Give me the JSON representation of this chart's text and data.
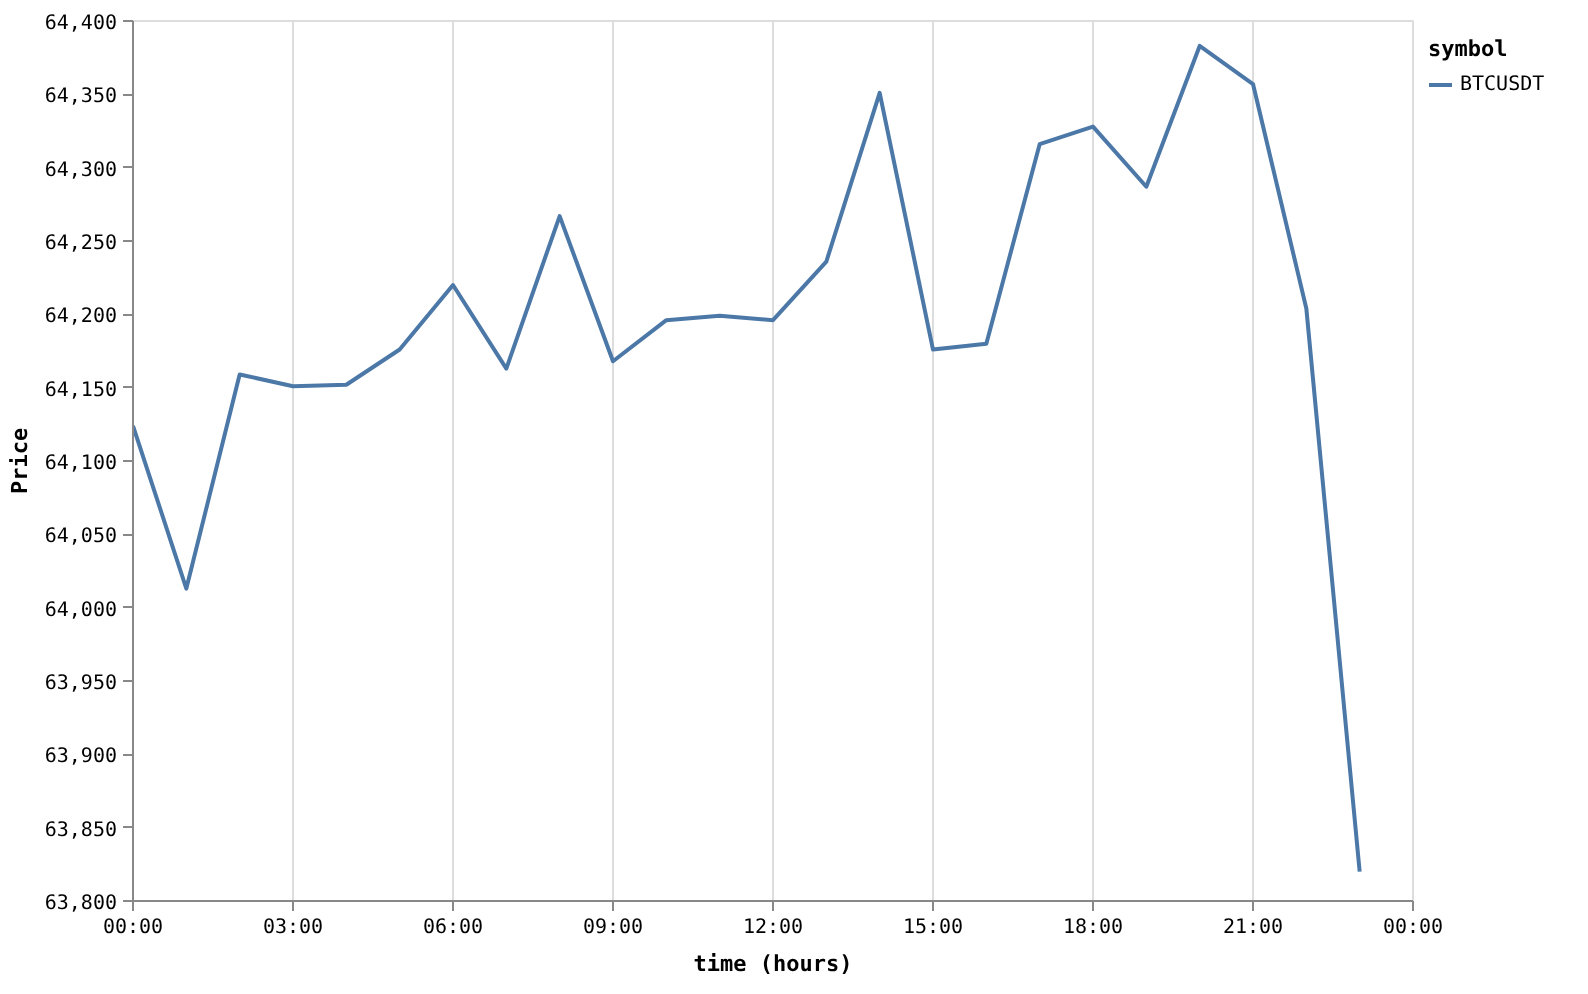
{
  "chart_data": {
    "type": "line",
    "xlabel": "time (hours)",
    "ylabel": "Price",
    "legend_title": "symbol",
    "x": [
      0,
      1,
      2,
      3,
      4,
      5,
      6,
      7,
      8,
      9,
      10,
      11,
      12,
      13,
      14,
      15,
      16,
      17,
      18,
      19,
      20,
      21,
      22,
      23
    ],
    "series": [
      {
        "name": "BTCUSDT",
        "color": "#4c78a8",
        "values": [
          64124,
          64013,
          64159,
          64151,
          64152,
          64176,
          64220,
          64163,
          64267,
          64168,
          64196,
          64199,
          64196,
          64236,
          64351,
          64176,
          64180,
          64316,
          64328,
          64287,
          64383,
          64357,
          64204,
          63820
        ]
      }
    ],
    "xlim": [
      0,
      24
    ],
    "xticks": [
      {
        "value": 0,
        "label": "00:00"
      },
      {
        "value": 3,
        "label": "03:00"
      },
      {
        "value": 6,
        "label": "06:00"
      },
      {
        "value": 9,
        "label": "09:00"
      },
      {
        "value": 12,
        "label": "12:00"
      },
      {
        "value": 15,
        "label": "15:00"
      },
      {
        "value": 18,
        "label": "18:00"
      },
      {
        "value": 21,
        "label": "21:00"
      },
      {
        "value": 24,
        "label": "00:00"
      }
    ],
    "ylim": [
      63800,
      64400
    ],
    "yticks": [
      {
        "value": 63800,
        "label": "63,800"
      },
      {
        "value": 63850,
        "label": "63,850"
      },
      {
        "value": 63900,
        "label": "63,900"
      },
      {
        "value": 63950,
        "label": "63,950"
      },
      {
        "value": 64000,
        "label": "64,000"
      },
      {
        "value": 64050,
        "label": "64,050"
      },
      {
        "value": 64100,
        "label": "64,100"
      },
      {
        "value": 64150,
        "label": "64,150"
      },
      {
        "value": 64200,
        "label": "64,200"
      },
      {
        "value": 64250,
        "label": "64,250"
      },
      {
        "value": 64300,
        "label": "64,300"
      },
      {
        "value": 64350,
        "label": "64,350"
      },
      {
        "value": 64400,
        "label": "64,400"
      }
    ],
    "grid": "x",
    "legend": "top right"
  }
}
